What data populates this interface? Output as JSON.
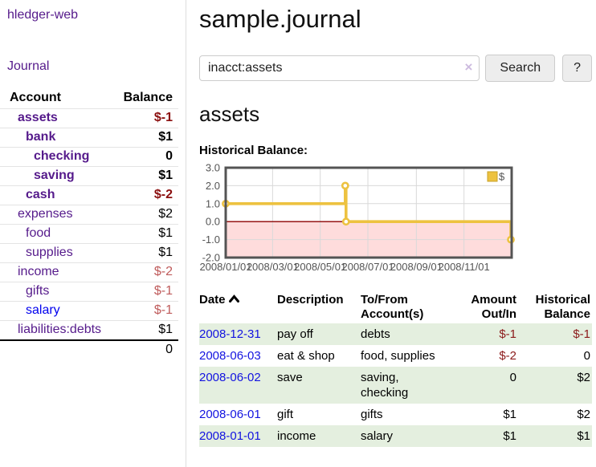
{
  "app": {
    "brand": "hledger-web"
  },
  "sidebar": {
    "journal_link": "Journal",
    "accounts": {
      "headers": {
        "account": "Account",
        "balance": "Balance"
      },
      "rows": [
        {
          "name": "assets",
          "depth": 1,
          "balance": "$-1",
          "bold": true,
          "balance_style": "neg-strong",
          "link_style": "visited"
        },
        {
          "name": "bank",
          "depth": 2,
          "balance": "$1",
          "bold": true,
          "balance_style": "normal",
          "link_style": "visited"
        },
        {
          "name": "checking",
          "depth": 3,
          "balance": "0",
          "bold": true,
          "balance_style": "normal",
          "link_style": "visited"
        },
        {
          "name": "saving",
          "depth": 3,
          "balance": "$1",
          "bold": true,
          "balance_style": "normal",
          "link_style": "visited"
        },
        {
          "name": "cash",
          "depth": 2,
          "balance": "$-2",
          "bold": true,
          "balance_style": "neg-strong",
          "link_style": "visited"
        },
        {
          "name": "expenses",
          "depth": 1,
          "balance": "$2",
          "bold": false,
          "balance_style": "normal",
          "link_style": "visited"
        },
        {
          "name": "food",
          "depth": 2,
          "balance": "$1",
          "bold": false,
          "balance_style": "normal",
          "link_style": "visited"
        },
        {
          "name": "supplies",
          "depth": 2,
          "balance": "$1",
          "bold": false,
          "balance_style": "normal",
          "link_style": "visited"
        },
        {
          "name": "income",
          "depth": 1,
          "balance": "$-2",
          "bold": false,
          "balance_style": "neg-soft",
          "link_style": "visited"
        },
        {
          "name": "gifts",
          "depth": 2,
          "balance": "$-1",
          "bold": false,
          "balance_style": "neg-soft",
          "link_style": "visited"
        },
        {
          "name": "salary",
          "depth": 2,
          "balance": "$-1",
          "bold": false,
          "balance_style": "neg-soft",
          "link_style": "new"
        },
        {
          "name": "liabilities:debts",
          "depth": 1,
          "balance": "$1",
          "bold": false,
          "balance_style": "normal",
          "link_style": "visited"
        }
      ],
      "total": "0"
    }
  },
  "header": {
    "title": "sample.journal"
  },
  "search": {
    "value": "inacct:assets",
    "clear_icon": "×",
    "button_label": "Search",
    "help_label": "?"
  },
  "account_page": {
    "title": "assets",
    "chart_label": "Historical Balance:"
  },
  "chart_data": {
    "type": "line",
    "title": "Historical Balance",
    "series": [
      {
        "name": "$",
        "color": "#edc240",
        "step": true,
        "points": [
          {
            "x": "2008-01-01",
            "y": 1
          },
          {
            "x": "2008-06-02",
            "y": 2
          },
          {
            "x": "2008-06-03",
            "y": 0
          },
          {
            "x": "2008-12-31",
            "y": -1
          }
        ]
      }
    ],
    "x_range": [
      "2008-01-01",
      "2009-01-01"
    ],
    "x_ticks": [
      "2008/01/01",
      "2008/03/01",
      "2008/05/01",
      "2008/07/01",
      "2008/09/01",
      "2008/11/01"
    ],
    "y_ticks": [
      "3.0",
      "2.0",
      "1.0",
      "0.0",
      "-1.0",
      "-2.0"
    ],
    "ylim": [
      -2,
      3
    ],
    "grid": true,
    "legend": {
      "label": "$",
      "position": "top-right"
    },
    "colors": {
      "frame": "#545454",
      "grid": "#d9d9d9",
      "negative_region": "#fedcdc",
      "zero_line": "#8b0000",
      "tick_text": "#545454",
      "series": "#edc240",
      "series_edge": "#c9a227"
    }
  },
  "register": {
    "headers": {
      "date": "Date",
      "sort_icon": "asc",
      "description": "Description",
      "accounts": "To/From Account(s)",
      "amount": "Amount Out/In",
      "balance": "Historical Balance"
    },
    "rows": [
      {
        "date": "2008-12-31",
        "description": "pay off",
        "accounts": "debts",
        "amount": "$-1",
        "amount_neg": true,
        "balance": "$-1",
        "balance_neg": true,
        "stripe": true
      },
      {
        "date": "2008-06-03",
        "description": "eat & shop",
        "accounts": "food, supplies",
        "amount": "$-2",
        "amount_neg": true,
        "balance": "0",
        "balance_neg": false,
        "stripe": false
      },
      {
        "date": "2008-06-02",
        "description": "save",
        "accounts": "saving, checking",
        "amount": "0",
        "amount_neg": false,
        "balance": "$2",
        "balance_neg": false,
        "stripe": true
      },
      {
        "date": "2008-06-01",
        "description": "gift",
        "accounts": "gifts",
        "amount": "$1",
        "amount_neg": false,
        "balance": "$2",
        "balance_neg": false,
        "stripe": false
      },
      {
        "date": "2008-01-01",
        "description": "income",
        "accounts": "salary",
        "amount": "$1",
        "amount_neg": false,
        "balance": "$1",
        "balance_neg": false,
        "stripe": true
      }
    ]
  }
}
